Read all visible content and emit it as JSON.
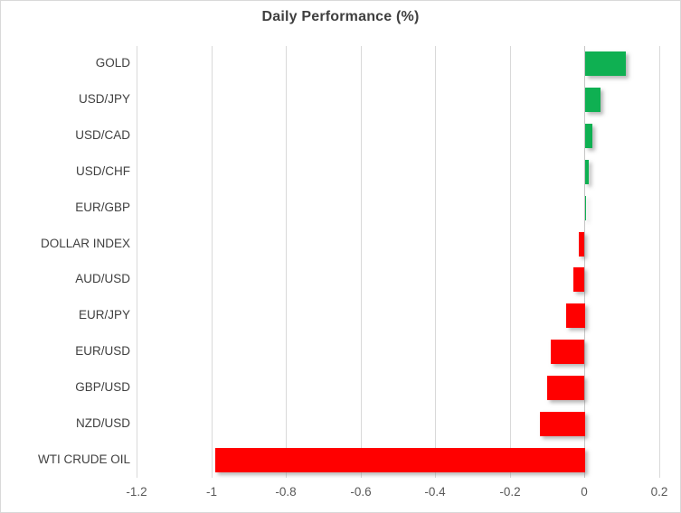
{
  "chart_data": {
    "type": "bar",
    "orientation": "horizontal",
    "title": "Daily Performance (%)",
    "categories": [
      "GOLD",
      "USD/JPY",
      "USD/CAD",
      "USD/CHF",
      "EUR/GBP",
      "DOLLAR INDEX",
      "AUD/USD",
      "EUR/JPY",
      "EUR/USD",
      "GBP/USD",
      "NZD/USD",
      "WTI CRUDE OIL"
    ],
    "values": [
      0.11,
      0.04,
      0.02,
      0.01,
      0.002,
      -0.015,
      -0.03,
      -0.05,
      -0.09,
      -0.1,
      -0.12,
      -0.99
    ],
    "xlabel": "",
    "ylabel": "",
    "xlim": [
      -1.2,
      0.2
    ],
    "xticks": [
      -1.2,
      -1,
      -0.8,
      -0.6,
      -0.4,
      -0.2,
      0,
      0.2
    ],
    "xtick_labels": [
      "-1.2",
      "-1",
      "-0.8",
      "-0.6",
      "-0.4",
      "-0.2",
      "0",
      "0.2"
    ],
    "grid": "vertical",
    "legend": "none"
  },
  "colors": {
    "positive_bar": "#0FB052",
    "negative_bar": "#FF0000",
    "gridline": "#D9D9D9",
    "zero_axis_line": "#C6C6C6",
    "title_text": "#3F3F3F",
    "category_text": "#404040",
    "tick_text": "#595959",
    "chart_border": "#D9D9D9",
    "background": "#FFFFFF"
  }
}
